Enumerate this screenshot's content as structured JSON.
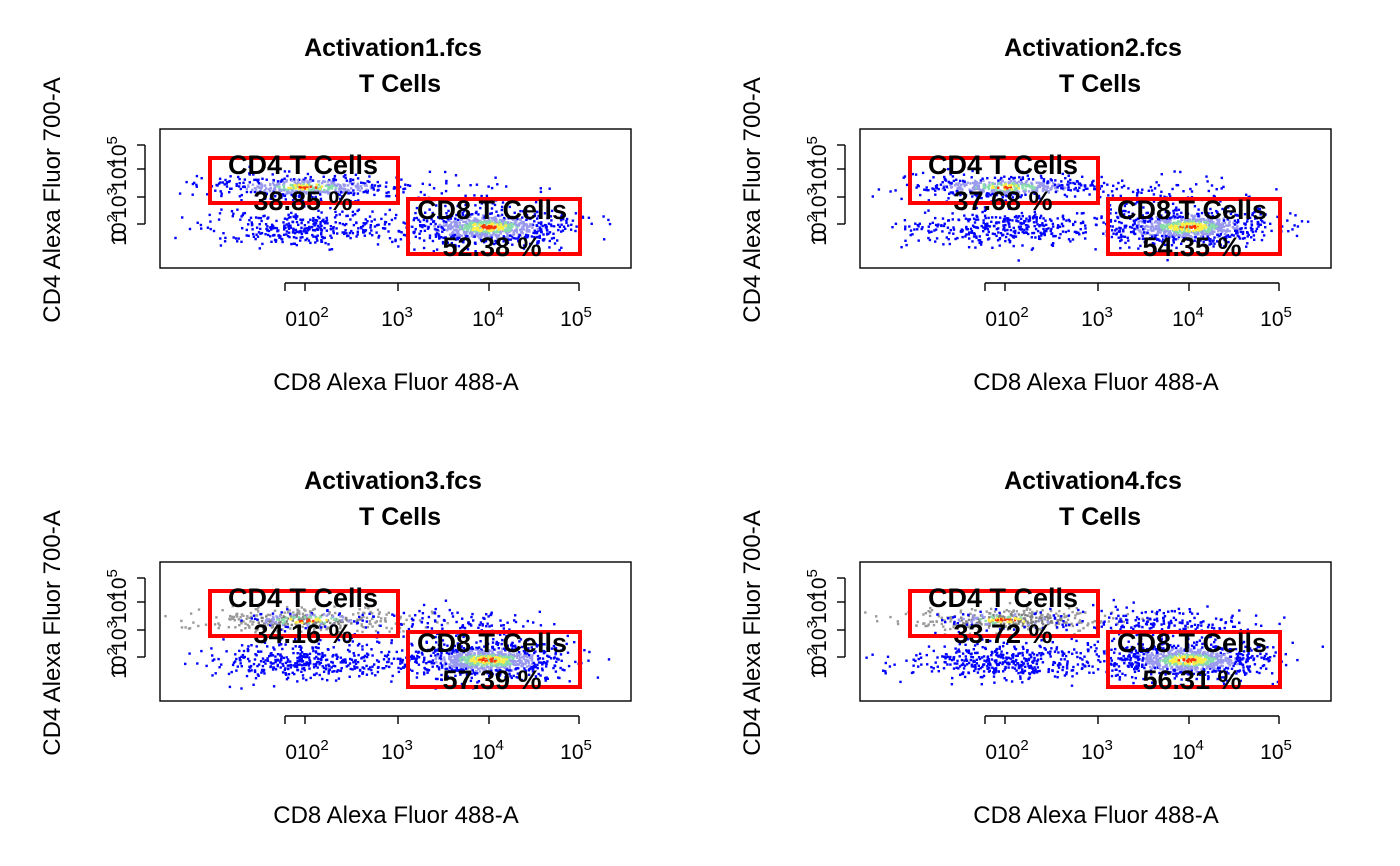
{
  "chart_data": [
    {
      "type": "scatter",
      "title": "Activation1.fcs",
      "subtitle": "T Cells",
      "xlabel": "CD8 Alexa Fluor 488-A",
      "ylabel": "CD4 Alexa Fluor 700-A",
      "x_ticks": [
        "0",
        "10^2",
        "10^3",
        "10^4",
        "10^5"
      ],
      "y_ticks": [
        "0",
        "10^2",
        "10^3",
        "10^4",
        "10^5"
      ],
      "gates": [
        {
          "label": "CD4 T Cells",
          "percent": "38.85 %"
        },
        {
          "label": "CD8 T Cells",
          "percent": "52.38 %"
        }
      ],
      "populations": {
        "cd4_density": 0.3885,
        "cd8_density": 0.5238,
        "dn_density": 0.55,
        "upper_density": 0.1
      }
    },
    {
      "type": "scatter",
      "title": "Activation2.fcs",
      "subtitle": "T Cells",
      "xlabel": "CD8 Alexa Fluor 488-A",
      "ylabel": "CD4 Alexa Fluor 700-A",
      "x_ticks": [
        "0",
        "10^2",
        "10^3",
        "10^4",
        "10^5"
      ],
      "y_ticks": [
        "0",
        "10^2",
        "10^3",
        "10^4",
        "10^5"
      ],
      "gates": [
        {
          "label": "CD4 T Cells",
          "percent": "37.68 %"
        },
        {
          "label": "CD8 T Cells",
          "percent": "54.35 %"
        }
      ],
      "populations": {
        "cd4_density": 0.3768,
        "cd8_density": 0.5435,
        "dn_density": 0.6,
        "upper_density": 0.25
      }
    },
    {
      "type": "scatter",
      "title": "Activation3.fcs",
      "subtitle": "T Cells",
      "xlabel": "CD8 Alexa Fluor 488-A",
      "ylabel": "CD4 Alexa Fluor 700-A",
      "x_ticks": [
        "0",
        "10^2",
        "10^3",
        "10^4",
        "10^5"
      ],
      "y_ticks": [
        "0",
        "10^2",
        "10^3",
        "10^4",
        "10^5"
      ],
      "gates": [
        {
          "label": "CD4 T Cells",
          "percent": "34.16 %"
        },
        {
          "label": "CD8 T Cells",
          "percent": "57.39 %"
        }
      ],
      "populations": {
        "cd4_density": 0.3416,
        "cd8_density": 0.5739,
        "dn_density": 0.65,
        "upper_density": 0.45
      }
    },
    {
      "type": "scatter",
      "title": "Activation4.fcs",
      "subtitle": "T Cells",
      "xlabel": "CD8 Alexa Fluor 488-A",
      "ylabel": "CD4 Alexa Fluor 700-A",
      "x_ticks": [
        "0",
        "10^2",
        "10^3",
        "10^4",
        "10^5"
      ],
      "y_ticks": [
        "0",
        "10^2",
        "10^3",
        "10^4",
        "10^5"
      ],
      "gates": [
        {
          "label": "CD4 T Cells",
          "percent": "33.72 %"
        },
        {
          "label": "CD8 T Cells",
          "percent": "56.31 %"
        }
      ],
      "populations": {
        "cd4_density": 0.3372,
        "cd8_density": 0.5631,
        "dn_density": 0.7,
        "upper_density": 0.7
      }
    }
  ],
  "colors": {
    "gate": "#ff0000",
    "sparse": "#0000ff",
    "low": "#9999ee",
    "mid": "#88ddaa",
    "high": "#ffee44",
    "peak": "#ff3300"
  }
}
